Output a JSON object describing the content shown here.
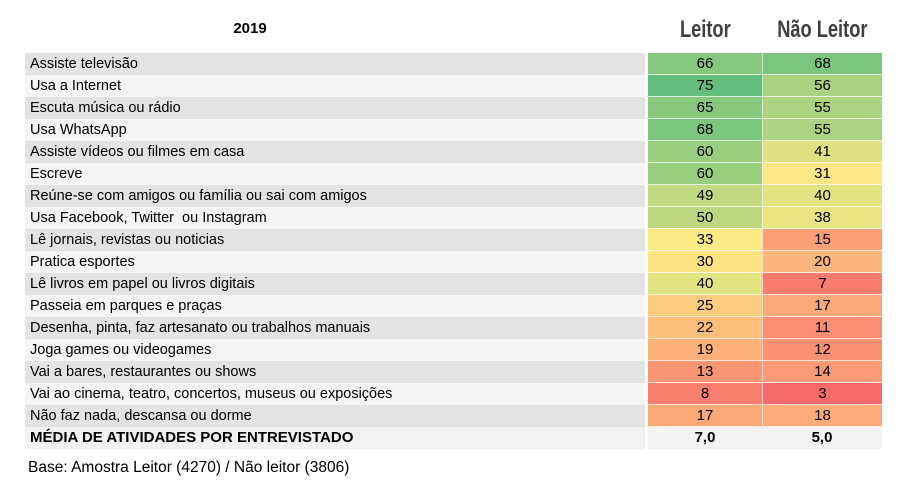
{
  "header": {
    "year": "2019",
    "col_leitor": "Leitor",
    "col_nao_leitor": "Não Leitor"
  },
  "footer": {
    "base_note": "Base: Amostra Leitor (4270) / Não leitor (3806)"
  },
  "colors": {
    "header_text": "#3F3F3F",
    "row_odd_bg": "#E3E3E3",
    "row_even_bg": "#F4F4F4",
    "summary_row_bg": "#F2F2F2",
    "scale_min_color": "#F8696B",
    "scale_mid_color": "#FFEB84",
    "scale_max_color": "#63BE7B"
  },
  "chart_data": {
    "type": "heatmap",
    "title": "2019",
    "columns": [
      "Leitor",
      "Não Leitor"
    ],
    "categories": [
      "Assiste televisão",
      "Usa a Internet",
      "Escuta música ou rádio",
      "Usa WhatsApp",
      "Assiste vídeos ou filmes em casa",
      "Escreve",
      "Reúne-se com amigos ou família ou sai com amigos",
      "Usa Facebook, Twitter  ou Instagram",
      "Lê jornais, revistas ou noticias",
      "Pratica esportes",
      "Lê livros em papel ou livros digitais",
      "Passeia em parques e praças",
      "Desenha, pinta, faz artesanato ou trabalhos manuais",
      "Joga games ou videogames",
      "Vai a bares, restaurantes ou shows",
      "Vai ao cinema, teatro, concertos, museus ou exposições",
      "Não faz nada, descansa ou dorme"
    ],
    "series": [
      {
        "name": "Leitor",
        "values": [
          66,
          75,
          65,
          68,
          60,
          60,
          49,
          50,
          33,
          30,
          40,
          25,
          22,
          19,
          13,
          8,
          17
        ]
      },
      {
        "name": "Não Leitor",
        "values": [
          68,
          56,
          55,
          55,
          41,
          31,
          40,
          38,
          15,
          20,
          7,
          17,
          11,
          12,
          14,
          3,
          18
        ]
      }
    ],
    "summary_row": {
      "label": "MÉDIA DE ATIVIDADES POR ENTREVISTADO",
      "leitor": "7,0",
      "nao_leitor": "5,0"
    },
    "color_scale": {
      "min_value": 3,
      "min_color": "#F8696B",
      "mid_value": 32,
      "mid_color": "#FFEB84",
      "max_value": 75,
      "max_color": "#63BE7B"
    },
    "legend_position": "none",
    "grid": false,
    "note": "Base: Amostra Leitor (4270) / Não leitor (3806)"
  }
}
